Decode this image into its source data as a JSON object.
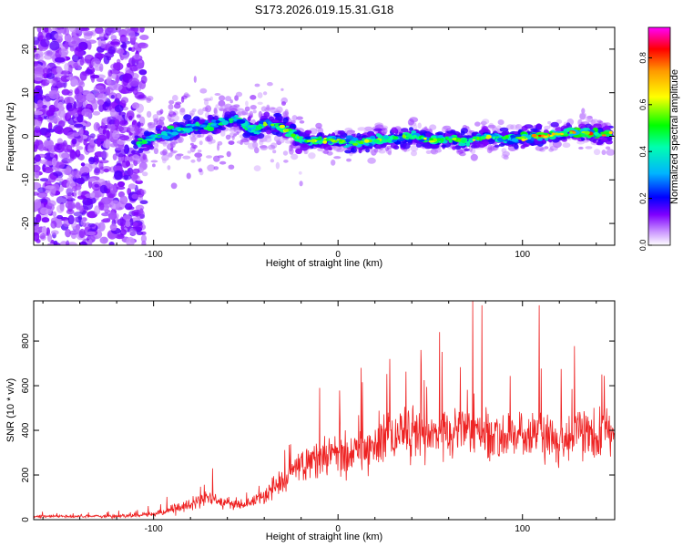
{
  "figure_title": "S173.2026.019.15.31.G18",
  "colors": {
    "snr_line": "#ee2222",
    "frame": "#000000",
    "colormap": [
      "#ffffff",
      "#d8c8f2",
      "#a070f0",
      "#7f00ff",
      "#1010ff",
      "#00d8ff",
      "#00ff40",
      "#ffff00",
      "#ff9900",
      "#ff0000",
      "#ff00ff"
    ]
  },
  "chart_data": [
    {
      "type": "heatmap",
      "title": "S173.2026.019.15.31.G18",
      "xlabel": "Height of straight line (km)",
      "ylabel": "Frequency (Hz)",
      "xlim": [
        -165,
        150
      ],
      "ylim": [
        -25,
        25
      ],
      "x_ticks": [
        -100,
        0,
        100
      ],
      "y_ticks": [
        -20,
        -10,
        0,
        10,
        20
      ],
      "colorbar": {
        "label": "Normalized spectral amplitude",
        "range": [
          0.0,
          0.93
        ],
        "ticks": [
          0.0,
          0.2,
          0.4,
          0.6,
          0.8
        ],
        "tick_labels": [
          "0.0",
          "0.2",
          "0.4",
          "0.6",
          "0.8"
        ]
      },
      "ridge_frequency_trend": {
        "x": [
          -110,
          -100,
          -90,
          -80,
          -70,
          -60,
          -55,
          -45,
          -40,
          -30,
          -20,
          -10,
          0,
          10,
          20,
          30,
          40,
          50,
          60,
          70,
          80,
          90,
          100,
          110,
          120,
          130,
          140,
          148
        ],
        "y": [
          -2.0,
          -0.5,
          1.0,
          2.0,
          2.5,
          3.5,
          4.0,
          1.0,
          3.0,
          2.0,
          -1.0,
          -1.0,
          -1.0,
          -1.5,
          -1.0,
          -0.5,
          0.0,
          -1.0,
          -0.5,
          -1.0,
          0.0,
          -0.5,
          -0.5,
          0.0,
          0.5,
          1.0,
          0.5,
          0.5
        ]
      }
    },
    {
      "type": "line",
      "xlabel": "Height of straight line (km)",
      "ylabel": "SNR (10 * v/v)",
      "xlim": [
        -165,
        150
      ],
      "ylim": [
        0,
        980
      ],
      "x_ticks": [
        -100,
        0,
        100
      ],
      "y_ticks": [
        0,
        200,
        400,
        600,
        800
      ],
      "series": [
        {
          "name": "SNR",
          "envelope_x": [
            -165,
            -140,
            -120,
            -100,
            -90,
            -80,
            -70,
            -60,
            -50,
            -40,
            -30,
            -20,
            -10,
            0,
            10,
            20,
            30,
            40,
            50,
            60,
            70,
            80,
            90,
            100,
            110,
            120,
            130,
            140,
            150
          ],
          "envelope_mean": [
            15,
            15,
            15,
            25,
            45,
            70,
            95,
            75,
            70,
            100,
            170,
            230,
            270,
            290,
            310,
            340,
            370,
            390,
            370,
            380,
            410,
            390,
            370,
            370,
            380,
            360,
            380,
            370,
            400
          ],
          "envelope_noise": [
            8,
            8,
            10,
            15,
            25,
            35,
            45,
            35,
            35,
            50,
            80,
            100,
            110,
            120,
            130,
            140,
            150,
            160,
            150,
            150,
            160,
            160,
            150,
            150,
            150,
            140,
            140,
            140,
            150
          ],
          "notable_peaks": [
            {
              "x": -68,
              "y": 230
            },
            {
              "x": -10,
              "y": 590
            },
            {
              "x": 28,
              "y": 720
            },
            {
              "x": 45,
              "y": 760
            },
            {
              "x": 55,
              "y": 840
            },
            {
              "x": 73,
              "y": 980
            },
            {
              "x": 78,
              "y": 960
            },
            {
              "x": 109,
              "y": 960
            },
            {
              "x": 143,
              "y": 650
            }
          ]
        }
      ]
    }
  ]
}
